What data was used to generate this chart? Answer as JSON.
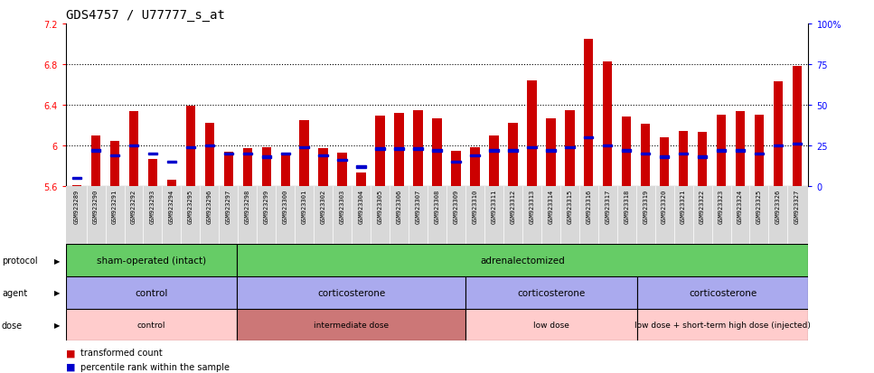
{
  "title": "GDS4757 / U77777_s_at",
  "samples": [
    "GSM923289",
    "GSM923290",
    "GSM923291",
    "GSM923292",
    "GSM923293",
    "GSM923294",
    "GSM923295",
    "GSM923296",
    "GSM923297",
    "GSM923298",
    "GSM923299",
    "GSM923300",
    "GSM923301",
    "GSM923302",
    "GSM923303",
    "GSM923304",
    "GSM923305",
    "GSM923306",
    "GSM923307",
    "GSM923308",
    "GSM923309",
    "GSM923310",
    "GSM923311",
    "GSM923312",
    "GSM923313",
    "GSM923314",
    "GSM923315",
    "GSM923316",
    "GSM923317",
    "GSM923318",
    "GSM923319",
    "GSM923320",
    "GSM923321",
    "GSM923322",
    "GSM923323",
    "GSM923324",
    "GSM923325",
    "GSM923326",
    "GSM923327"
  ],
  "bar_values": [
    5.61,
    6.1,
    6.04,
    6.34,
    5.87,
    5.66,
    6.39,
    6.22,
    5.94,
    5.97,
    5.98,
    5.93,
    6.25,
    5.97,
    5.93,
    5.73,
    6.29,
    6.32,
    6.35,
    6.27,
    5.95,
    5.98,
    6.1,
    6.22,
    6.64,
    6.27,
    6.35,
    7.05,
    6.83,
    6.28,
    6.21,
    6.08,
    6.14,
    6.13,
    6.3,
    6.34,
    6.3,
    6.63,
    6.78
  ],
  "percentile_values": [
    5,
    22,
    19,
    25,
    20,
    15,
    24,
    25,
    20,
    20,
    18,
    20,
    24,
    19,
    16,
    12,
    23,
    23,
    23,
    22,
    15,
    19,
    22,
    22,
    24,
    22,
    24,
    30,
    25,
    22,
    20,
    18,
    20,
    18,
    22,
    22,
    20,
    25,
    26
  ],
  "ylim_left": [
    5.6,
    7.2
  ],
  "yticks_left": [
    5.6,
    6.0,
    6.4,
    6.8,
    7.2
  ],
  "ytick_labels_left": [
    "5.6",
    "6",
    "6.4",
    "6.8",
    "7.2"
  ],
  "ylim_right": [
    0,
    100
  ],
  "yticks_right": [
    0,
    25,
    50,
    75,
    100
  ],
  "ytick_labels_right": [
    "0",
    "25",
    "50",
    "75",
    "100%"
  ],
  "bar_color": "#CC0000",
  "percentile_color": "#0000CC",
  "baseline": 5.6,
  "dotted_lines": [
    6.0,
    6.4,
    6.8
  ],
  "protocol_groups": [
    {
      "label": "sham-operated (intact)",
      "start": 0,
      "end": 9,
      "color": "#66CC66"
    },
    {
      "label": "adrenalectomized",
      "start": 9,
      "end": 39,
      "color": "#66CC66"
    }
  ],
  "agent_groups": [
    {
      "label": "control",
      "start": 0,
      "end": 9,
      "color": "#AAAAEE"
    },
    {
      "label": "corticosterone",
      "start": 9,
      "end": 21,
      "color": "#AAAAEE"
    },
    {
      "label": "corticosterone",
      "start": 21,
      "end": 30,
      "color": "#AAAAEE"
    },
    {
      "label": "corticosterone",
      "start": 30,
      "end": 39,
      "color": "#AAAAEE"
    }
  ],
  "dose_groups": [
    {
      "label": "control",
      "start": 0,
      "end": 9,
      "color": "#FFCCCC"
    },
    {
      "label": "intermediate dose",
      "start": 9,
      "end": 21,
      "color": "#CC7777"
    },
    {
      "label": "low dose",
      "start": 21,
      "end": 30,
      "color": "#FFCCCC"
    },
    {
      "label": "low dose + short-term high dose (injected)",
      "start": 30,
      "end": 39,
      "color": "#FFCCCC"
    }
  ]
}
